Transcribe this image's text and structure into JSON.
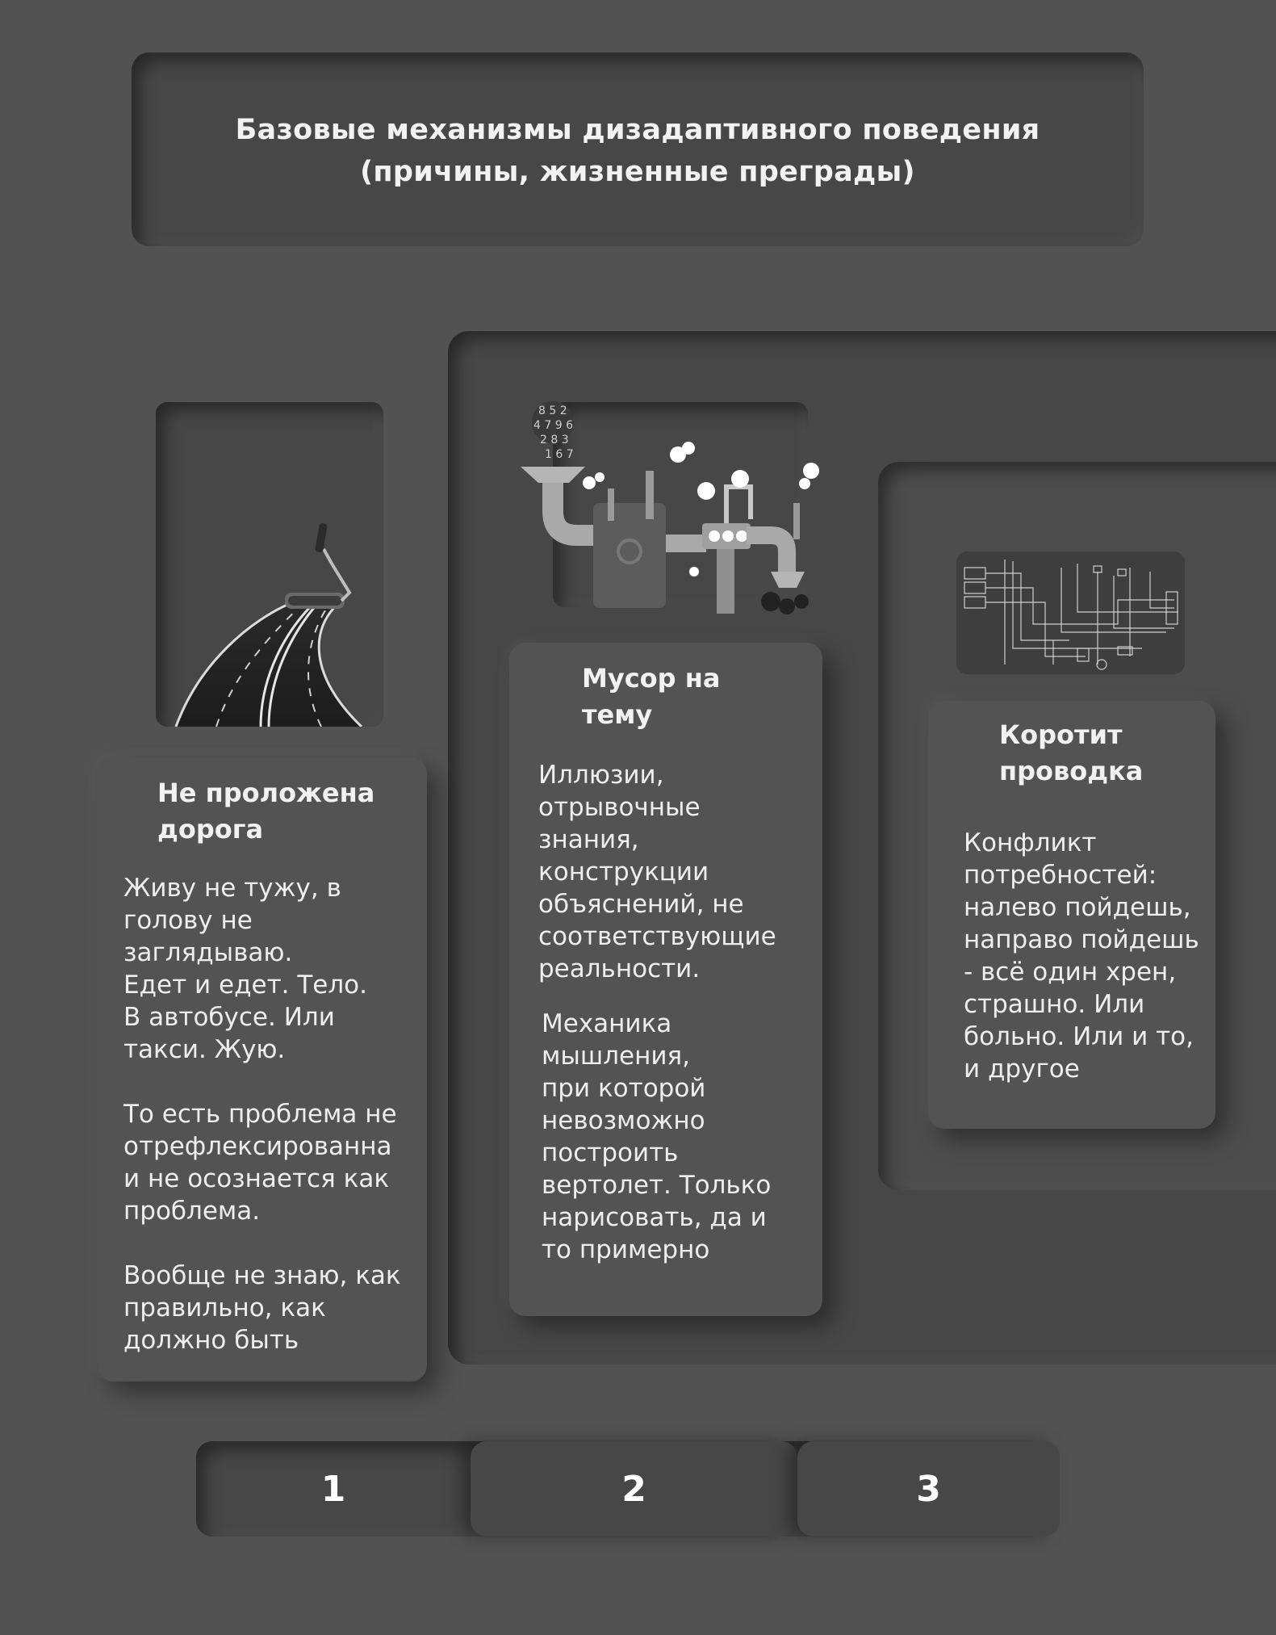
{
  "header": {
    "title_line1": "Базовые механизмы дизадаптивного поведения",
    "title_line2": "(причины, жизненные преграды)"
  },
  "cards": [
    {
      "title": "Не проложена дорога",
      "text": "Живу не тужу, в\nголову не\nзаглядываю.\nЕдет и едет. Тело.\nВ автобусе. Или\nтакси. Жую.\n\nТо есть проблема не\nотрефлексированна\nи не осознается как\nпроблема.\n\nВообще не знаю, как\nправильно, как\nдолжно быть",
      "illustration": "road-icon"
    },
    {
      "title": "Мусор на тему",
      "text": "Иллюзии,\nотрывочные\nзнания,\nконструкции\nобъяснений, не\nсоответствующие\nреальности.",
      "text2": "Механика\nмышления,\nпри которой\nневозможно\nпостроить\nвертолет. Только\nнарисовать, да и\nто примерно",
      "illustration": "pipes-machine-icon"
    },
    {
      "title": "Коротит проводка",
      "text": "Конфликт\nпотребностей:\nналево пойдешь,\nнаправо пойдешь\n- всё один хрен,\nстрашно. Или\nбольно. Или и то,\nи другое",
      "illustration": "wiring-diagram-icon"
    }
  ],
  "pager": [
    "1",
    "2",
    "3"
  ],
  "colors": {
    "background": "#525252",
    "inset": "#474747",
    "text": "#f2f2f2"
  }
}
